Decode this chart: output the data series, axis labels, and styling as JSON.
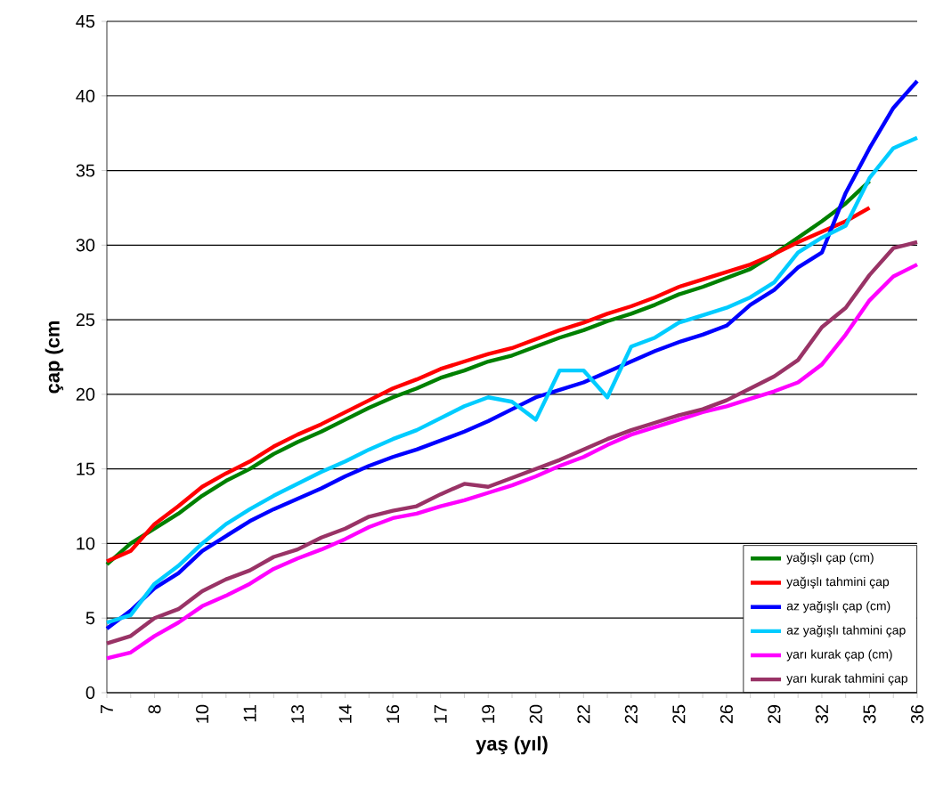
{
  "chart_data": {
    "type": "line",
    "xlabel": "yaş (yıl)",
    "ylabel": "çap (cm",
    "categories": [
      "7",
      null,
      "8",
      null,
      "10",
      null,
      "11",
      null,
      "13",
      null,
      "14",
      null,
      "16",
      null,
      "17",
      null,
      "19",
      null,
      "20",
      null,
      "22",
      null,
      "23",
      null,
      "25",
      null,
      "26",
      null,
      "29",
      null,
      "32",
      null,
      "35",
      null,
      "36"
    ],
    "ylim": [
      0,
      45
    ],
    "yticks": [
      0,
      5,
      10,
      15,
      20,
      25,
      30,
      35,
      40,
      45
    ],
    "grid": "y",
    "legend": "bottom right",
    "marker": "none",
    "line_style": "solid",
    "series": [
      {
        "name": "yağışlı çap (cm)",
        "color": "#008000",
        "values": [
          8.6,
          10,
          11,
          12,
          13.2,
          14.2,
          15,
          16,
          16.8,
          17.5,
          18.3,
          19.1,
          19.8,
          20.4,
          21.1,
          21.6,
          22.2,
          22.6,
          23.2,
          23.8,
          24.3,
          24.9,
          25.4,
          26,
          26.7,
          27.2,
          27.8,
          28.4,
          29.4,
          30.5,
          31.6,
          32.8,
          34.3,
          null,
          null
        ]
      },
      {
        "name": "yağışlı tahmini çap",
        "color": "#ff0000",
        "values": [
          8.8,
          9.5,
          11.3,
          12.5,
          13.8,
          14.7,
          15.5,
          16.5,
          17.3,
          18,
          18.8,
          19.6,
          20.4,
          21,
          21.7,
          22.2,
          22.7,
          23.1,
          23.7,
          24.3,
          24.8,
          25.4,
          25.9,
          26.5,
          27.2,
          27.7,
          28.2,
          28.7,
          29.4,
          30.2,
          30.9,
          31.6,
          32.5,
          null,
          null
        ]
      },
      {
        "name": "az yağışlı çap (cm)",
        "color": "#0000ff",
        "values": [
          4.3,
          5.5,
          7,
          8,
          9.5,
          10.5,
          11.5,
          12.3,
          13,
          13.7,
          14.5,
          15.2,
          15.8,
          16.3,
          16.9,
          17.5,
          18.2,
          19,
          19.8,
          20.3,
          20.8,
          21.5,
          22.2,
          22.9,
          23.5,
          24,
          24.6,
          26,
          27,
          28.5,
          29.5,
          33.5,
          36.5,
          39.2,
          41
        ]
      },
      {
        "name": "az yağışlı tahmini çap",
        "color": "#00ccff",
        "values": [
          4.7,
          5.2,
          7.3,
          8.5,
          10,
          11.3,
          12.3,
          13.2,
          14,
          14.8,
          15.5,
          16.3,
          17,
          17.6,
          18.4,
          19.2,
          19.8,
          19.5,
          18.3,
          21.6,
          21.6,
          19.8,
          23.2,
          23.8,
          24.8,
          25.3,
          25.8,
          26.5,
          27.5,
          29.5,
          30.5,
          31.3,
          34.5,
          36.5,
          37.2
        ]
      },
      {
        "name": "yarı kurak çap (cm)",
        "color": "#ff00ff",
        "values": [
          2.3,
          2.7,
          3.8,
          4.7,
          5.8,
          6.5,
          7.3,
          8.3,
          9,
          9.6,
          10.3,
          11.1,
          11.7,
          12,
          12.5,
          12.9,
          13.4,
          13.9,
          14.5,
          15.2,
          15.8,
          16.6,
          17.3,
          17.8,
          18.3,
          18.8,
          19.2,
          19.7,
          20.2,
          20.8,
          22,
          24,
          26.3,
          27.9,
          28.7
        ]
      },
      {
        "name": "yarı kurak tahmini çap",
        "color": "#993366",
        "values": [
          3.3,
          3.8,
          5,
          5.6,
          6.8,
          7.6,
          8.2,
          9.1,
          9.6,
          10.4,
          11,
          11.8,
          12.2,
          12.5,
          13.3,
          14,
          13.8,
          14.4,
          15,
          15.6,
          16.3,
          17,
          17.6,
          18.1,
          18.6,
          19,
          19.6,
          20.4,
          21.2,
          22.3,
          24.5,
          25.8,
          28,
          29.8,
          30.2
        ]
      }
    ]
  }
}
